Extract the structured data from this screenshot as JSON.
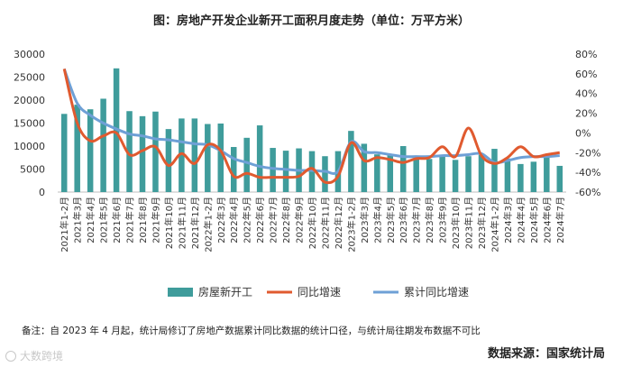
{
  "title": "图：房地产开发企业新开工面积月度走势（单位：万平方米）",
  "note": "备注：自 2023 年 4 月起，统计局修订了房地产数据累计同比数据的统计口径，与统计局往期发布数据不可比",
  "source": "数据来源：国家统计局",
  "watermark": "大数跨境",
  "colors": {
    "bar": "#3f9c9b",
    "yoy": "#e05a2f",
    "cum": "#6ea0d6"
  },
  "chart_data": {
    "type": "bar",
    "categories": [
      "2021年1-2月",
      "2021年3月",
      "2021年4月",
      "2021年5月",
      "2021年6月",
      "2021年7月",
      "2021年8月",
      "2021年9月",
      "2021年10月",
      "2021年11月",
      "2021年12月",
      "2022年1-2月",
      "2022年3月",
      "2022年4月",
      "2022年5月",
      "2022年6月",
      "2022年7月",
      "2022年8月",
      "2022年9月",
      "2022年10月",
      "2022年11月",
      "2022年12月",
      "2023年1-2月",
      "2023年3月",
      "2023年4月",
      "2023年5月",
      "2023年6月",
      "2023年7月",
      "2023年8月",
      "2023年9月",
      "2023年10月",
      "2023年11月",
      "2023年12月",
      "2024年1-2月",
      "2024年3月",
      "2024年4月",
      "2024年5月",
      "2024年6月",
      "2024年7月"
    ],
    "series": [
      {
        "name": "房屋新开工",
        "axis": "left",
        "type": "bar",
        "values": [
          17000,
          19000,
          18000,
          20300,
          26900,
          17600,
          16500,
          17500,
          13700,
          16000,
          16000,
          14800,
          14900,
          9800,
          11800,
          14500,
          9600,
          9000,
          9500,
          8900,
          7800,
          8900,
          13300,
          10500,
          8200,
          8200,
          10000,
          7500,
          7200,
          8100,
          7000,
          7800,
          8100,
          9400,
          7300,
          6100,
          6600,
          7900,
          5700
        ]
      },
      {
        "name": "同比增速",
        "axis": "right",
        "type": "line",
        "values": [
          65,
          10,
          -8,
          -3,
          0,
          -22,
          -18,
          -14,
          -33,
          -21,
          -31,
          -12,
          -18,
          -44,
          -41,
          -45,
          -45,
          -45,
          -44,
          -36,
          -50,
          -44,
          -10,
          -28,
          -25,
          -27,
          -30,
          -26,
          -25,
          -14,
          -24,
          5,
          -23,
          -31,
          -25,
          -14,
          -24,
          -22,
          -20
        ]
      },
      {
        "name": "累计同比增速",
        "axis": "right",
        "type": "line",
        "values": [
          65,
          30,
          18,
          10,
          4,
          -1,
          -3,
          -6,
          -7,
          -9,
          -11,
          -12,
          -18,
          -26,
          -30,
          -34,
          -36,
          -37,
          -38,
          -38,
          -39,
          -39,
          -9,
          -19,
          -20,
          -22,
          -24,
          -24,
          -24,
          -23,
          -23,
          -22,
          -21,
          -30,
          -28,
          -25,
          -24,
          -24,
          -23
        ]
      }
    ],
    "y_left": {
      "min": 0,
      "max": 30000,
      "ticks": [
        "0",
        "5000",
        "10000",
        "15000",
        "20000",
        "25000",
        "30000"
      ]
    },
    "y_right": {
      "min": -60,
      "max": 80,
      "ticks": [
        "-60%",
        "-40%",
        "-20%",
        "0%",
        "20%",
        "40%",
        "60%",
        "80%"
      ]
    },
    "legend": [
      {
        "label": "房屋新开工",
        "kind": "bar"
      },
      {
        "label": "同比增速",
        "kind": "yoy"
      },
      {
        "label": "累计同比增速",
        "kind": "cum"
      }
    ],
    "legend_position": "bottom"
  }
}
